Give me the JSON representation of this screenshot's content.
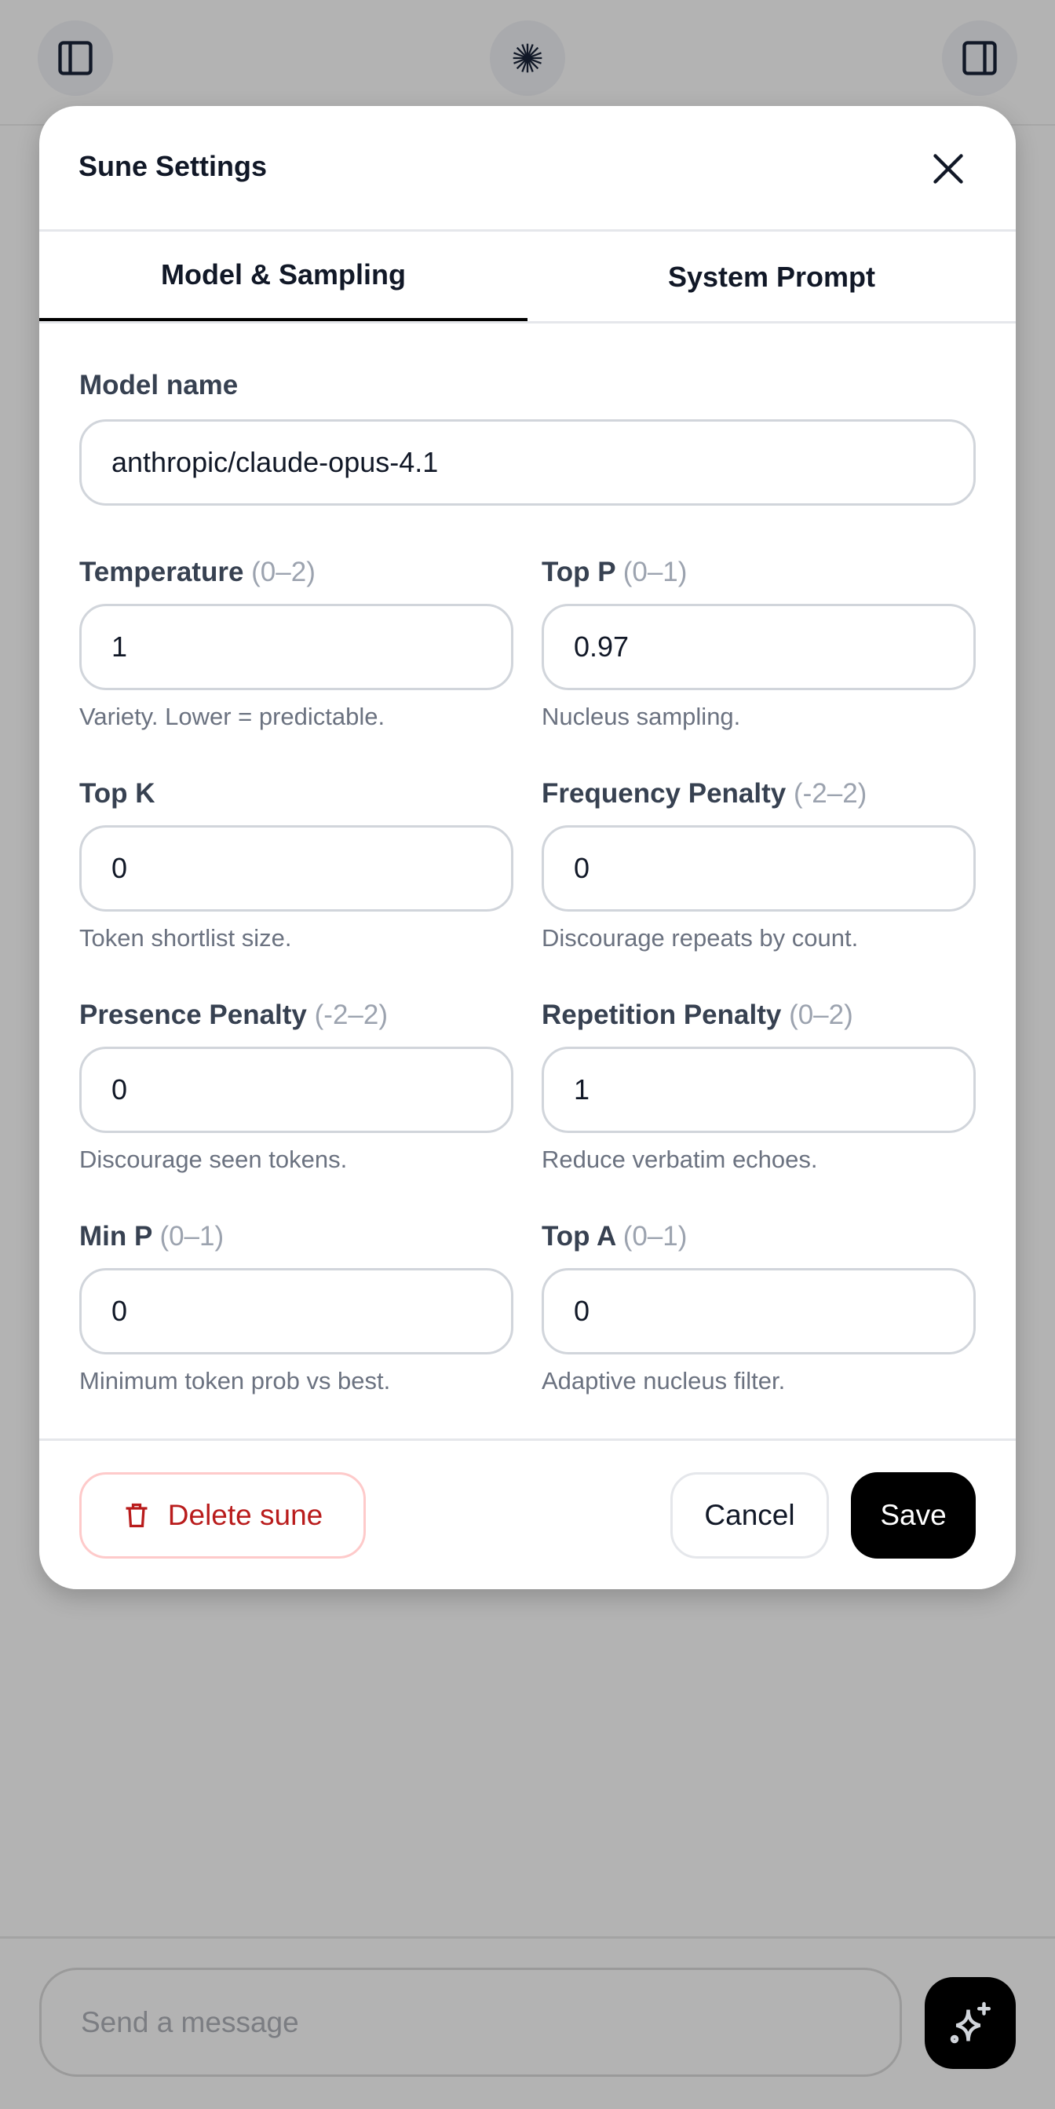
{
  "topbar": {
    "left_icon": "sidebar-left-icon",
    "center_icon": "starburst-logo-icon",
    "right_icon": "sidebar-right-icon"
  },
  "modal": {
    "title": "Sune Settings",
    "tabs": [
      {
        "label": "Model & Sampling",
        "active": true
      },
      {
        "label": "System Prompt",
        "active": false
      }
    ],
    "model": {
      "label": "Model name",
      "value": "anthropic/claude-opus-4.1"
    },
    "fields": [
      {
        "label": "Temperature",
        "range": "(0–2)",
        "value": "1",
        "help": "Variety. Lower = predictable."
      },
      {
        "label": "Top P",
        "range": "(0–1)",
        "value": "0.97",
        "help": "Nucleus sampling."
      },
      {
        "label": "Top K",
        "range": "",
        "value": "0",
        "help": "Token shortlist size."
      },
      {
        "label": "Frequency Penalty",
        "range": "(-2–2)",
        "value": "0",
        "help": "Discourage repeats by count."
      },
      {
        "label": "Presence Penalty",
        "range": "(-2–2)",
        "value": "0",
        "help": "Discourage seen tokens."
      },
      {
        "label": "Repetition Penalty",
        "range": "(0–2)",
        "value": "1",
        "help": "Reduce verbatim echoes."
      },
      {
        "label": "Min P",
        "range": "(0–1)",
        "value": "0",
        "help": "Minimum token prob vs best."
      },
      {
        "label": "Top A",
        "range": "(0–1)",
        "value": "0",
        "help": "Adaptive nucleus filter."
      }
    ],
    "footer": {
      "delete_label": "Delete sune",
      "cancel_label": "Cancel",
      "save_label": "Save"
    },
    "colors": {
      "danger": "#b91c1c",
      "primary": "#000000"
    }
  },
  "composer": {
    "placeholder": "Send a message",
    "send_icon": "sparkles-icon"
  }
}
